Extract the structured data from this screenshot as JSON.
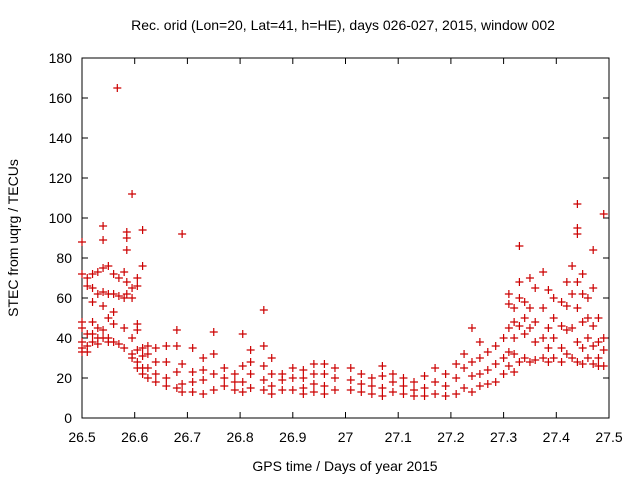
{
  "chart_data": {
    "type": "scatter",
    "title": "Rec. orid (Lon=20, Lat=41, h=HE), days 026-027, 2015, window 002",
    "xlabel": "GPS time / Days of year 2015",
    "ylabel": "STEC from uqrg / TECUs",
    "xlim": [
      26.5,
      27.5
    ],
    "ylim": [
      0,
      180
    ],
    "xticks": [
      "26.5",
      "26.6",
      "26.7",
      "26.8",
      "26.9",
      "27",
      "27.1",
      "27.2",
      "27.3",
      "27.4",
      "27.5"
    ],
    "yticks": [
      "0",
      "20",
      "40",
      "60",
      "80",
      "100",
      "120",
      "140",
      "160",
      "180"
    ],
    "grid": false,
    "marker": "+",
    "marker_color": "#cc0000",
    "points": [
      [
        26.5,
        88
      ],
      [
        26.5,
        72
      ],
      [
        26.5,
        48
      ],
      [
        26.5,
        45
      ],
      [
        26.5,
        38
      ],
      [
        26.5,
        35
      ],
      [
        26.5,
        33
      ],
      [
        26.51,
        70
      ],
      [
        26.51,
        66
      ],
      [
        26.51,
        42
      ],
      [
        26.51,
        36
      ],
      [
        26.51,
        33
      ],
      [
        26.52,
        72
      ],
      [
        26.52,
        65
      ],
      [
        26.52,
        58
      ],
      [
        26.52,
        48
      ],
      [
        26.52,
        42
      ],
      [
        26.52,
        38
      ],
      [
        26.53,
        73
      ],
      [
        26.53,
        62
      ],
      [
        26.53,
        45
      ],
      [
        26.53,
        40
      ],
      [
        26.53,
        37
      ],
      [
        26.54,
        96
      ],
      [
        26.54,
        89
      ],
      [
        26.54,
        75
      ],
      [
        26.54,
        63
      ],
      [
        26.54,
        56
      ],
      [
        26.54,
        44
      ],
      [
        26.54,
        40
      ],
      [
        26.55,
        76
      ],
      [
        26.55,
        62
      ],
      [
        26.55,
        50
      ],
      [
        26.55,
        40
      ],
      [
        26.55,
        38
      ],
      [
        26.56,
        72
      ],
      [
        26.56,
        62
      ],
      [
        26.56,
        53
      ],
      [
        26.56,
        47
      ],
      [
        26.56,
        38
      ],
      [
        26.567,
        165
      ],
      [
        26.57,
        70
      ],
      [
        26.57,
        61
      ],
      [
        26.57,
        37
      ],
      [
        26.58,
        73
      ],
      [
        26.58,
        60
      ],
      [
        26.58,
        45
      ],
      [
        26.58,
        35
      ],
      [
        26.585,
        93
      ],
      [
        26.585,
        90
      ],
      [
        26.585,
        84
      ],
      [
        26.585,
        68
      ],
      [
        26.585,
        62
      ],
      [
        26.595,
        112
      ],
      [
        26.595,
        65
      ],
      [
        26.595,
        60
      ],
      [
        26.595,
        40
      ],
      [
        26.595,
        32
      ],
      [
        26.595,
        30
      ],
      [
        26.605,
        70
      ],
      [
        26.605,
        66
      ],
      [
        26.605,
        47
      ],
      [
        26.605,
        44
      ],
      [
        26.605,
        34
      ],
      [
        26.605,
        28
      ],
      [
        26.605,
        25
      ],
      [
        26.615,
        94
      ],
      [
        26.615,
        76
      ],
      [
        26.615,
        35
      ],
      [
        26.615,
        31
      ],
      [
        26.615,
        25
      ],
      [
        26.615,
        22
      ],
      [
        26.625,
        36
      ],
      [
        26.625,
        32
      ],
      [
        26.625,
        25
      ],
      [
        26.625,
        20
      ],
      [
        26.64,
        35
      ],
      [
        26.64,
        28
      ],
      [
        26.64,
        22
      ],
      [
        26.64,
        18
      ],
      [
        26.66,
        36
      ],
      [
        26.66,
        28
      ],
      [
        26.66,
        20
      ],
      [
        26.66,
        16
      ],
      [
        26.68,
        44
      ],
      [
        26.68,
        36
      ],
      [
        26.68,
        23
      ],
      [
        26.68,
        15
      ],
      [
        26.69,
        92
      ],
      [
        26.69,
        27
      ],
      [
        26.69,
        17
      ],
      [
        26.69,
        13
      ],
      [
        26.71,
        35
      ],
      [
        26.71,
        23
      ],
      [
        26.71,
        18
      ],
      [
        26.71,
        13
      ],
      [
        26.73,
        30
      ],
      [
        26.73,
        24
      ],
      [
        26.73,
        19
      ],
      [
        26.73,
        12
      ],
      [
        26.75,
        43
      ],
      [
        26.75,
        32
      ],
      [
        26.75,
        22
      ],
      [
        26.75,
        14
      ],
      [
        26.77,
        25
      ],
      [
        26.77,
        20
      ],
      [
        26.77,
        16
      ],
      [
        26.79,
        22
      ],
      [
        26.79,
        18
      ],
      [
        26.79,
        14
      ],
      [
        26.805,
        42
      ],
      [
        26.805,
        26
      ],
      [
        26.805,
        18
      ],
      [
        26.805,
        13
      ],
      [
        26.82,
        34
      ],
      [
        26.82,
        28
      ],
      [
        26.82,
        22
      ],
      [
        26.82,
        15
      ],
      [
        26.845,
        54
      ],
      [
        26.845,
        36
      ],
      [
        26.845,
        26
      ],
      [
        26.845,
        19
      ],
      [
        26.845,
        14
      ],
      [
        26.86,
        30
      ],
      [
        26.86,
        22
      ],
      [
        26.86,
        16
      ],
      [
        26.86,
        12
      ],
      [
        26.88,
        22
      ],
      [
        26.88,
        19
      ],
      [
        26.88,
        14
      ],
      [
        26.9,
        25
      ],
      [
        26.9,
        20
      ],
      [
        26.9,
        14
      ],
      [
        26.92,
        24
      ],
      [
        26.92,
        20
      ],
      [
        26.92,
        15
      ],
      [
        26.92,
        12
      ],
      [
        26.94,
        27
      ],
      [
        26.94,
        22
      ],
      [
        26.94,
        17
      ],
      [
        26.94,
        13
      ],
      [
        26.96,
        27
      ],
      [
        26.96,
        22
      ],
      [
        26.96,
        16
      ],
      [
        26.96,
        12
      ],
      [
        26.98,
        25
      ],
      [
        26.98,
        20
      ],
      [
        26.98,
        14
      ],
      [
        27.01,
        25
      ],
      [
        27.01,
        19
      ],
      [
        27.01,
        14
      ],
      [
        27.03,
        22
      ],
      [
        27.03,
        17
      ],
      [
        27.03,
        13
      ],
      [
        27.05,
        20
      ],
      [
        27.05,
        16
      ],
      [
        27.05,
        12
      ],
      [
        27.07,
        26
      ],
      [
        27.07,
        21
      ],
      [
        27.07,
        15
      ],
      [
        27.07,
        11
      ],
      [
        27.09,
        22
      ],
      [
        27.09,
        18
      ],
      [
        27.09,
        13
      ],
      [
        27.11,
        20
      ],
      [
        27.11,
        16
      ],
      [
        27.11,
        12
      ],
      [
        27.13,
        18
      ],
      [
        27.13,
        14
      ],
      [
        27.13,
        11
      ],
      [
        27.15,
        21
      ],
      [
        27.15,
        15
      ],
      [
        27.15,
        11
      ],
      [
        27.17,
        25
      ],
      [
        27.17,
        18
      ],
      [
        27.17,
        12
      ],
      [
        27.19,
        22
      ],
      [
        27.19,
        16
      ],
      [
        27.19,
        11
      ],
      [
        27.21,
        27
      ],
      [
        27.21,
        20
      ],
      [
        27.21,
        12
      ],
      [
        27.225,
        32
      ],
      [
        27.225,
        25
      ],
      [
        27.225,
        15
      ],
      [
        27.24,
        45
      ],
      [
        27.24,
        28
      ],
      [
        27.24,
        21
      ],
      [
        27.24,
        13
      ],
      [
        27.255,
        38
      ],
      [
        27.255,
        30
      ],
      [
        27.255,
        22
      ],
      [
        27.255,
        16
      ],
      [
        27.27,
        33
      ],
      [
        27.27,
        24
      ],
      [
        27.27,
        17
      ],
      [
        27.285,
        36
      ],
      [
        27.285,
        27
      ],
      [
        27.285,
        18
      ],
      [
        27.3,
        40
      ],
      [
        27.3,
        30
      ],
      [
        27.3,
        22
      ],
      [
        27.31,
        62
      ],
      [
        27.31,
        57
      ],
      [
        27.31,
        45
      ],
      [
        27.31,
        33
      ],
      [
        27.31,
        26
      ],
      [
        27.32,
        55
      ],
      [
        27.32,
        48
      ],
      [
        27.32,
        40
      ],
      [
        27.32,
        32
      ],
      [
        27.32,
        23
      ],
      [
        27.33,
        86
      ],
      [
        27.33,
        68
      ],
      [
        27.33,
        60
      ],
      [
        27.33,
        46
      ],
      [
        27.33,
        28
      ],
      [
        27.34,
        58
      ],
      [
        27.34,
        50
      ],
      [
        27.34,
        42
      ],
      [
        27.34,
        30
      ],
      [
        27.35,
        70
      ],
      [
        27.35,
        55
      ],
      [
        27.35,
        45
      ],
      [
        27.35,
        28
      ],
      [
        27.36,
        65
      ],
      [
        27.36,
        48
      ],
      [
        27.36,
        38
      ],
      [
        27.36,
        29
      ],
      [
        27.375,
        73
      ],
      [
        27.375,
        55
      ],
      [
        27.375,
        40
      ],
      [
        27.375,
        30
      ],
      [
        27.385,
        64
      ],
      [
        27.385,
        45
      ],
      [
        27.385,
        35
      ],
      [
        27.385,
        28
      ],
      [
        27.395,
        60
      ],
      [
        27.395,
        50
      ],
      [
        27.395,
        40
      ],
      [
        27.395,
        30
      ],
      [
        27.41,
        58
      ],
      [
        27.41,
        46
      ],
      [
        27.41,
        35
      ],
      [
        27.41,
        28
      ],
      [
        27.42,
        68
      ],
      [
        27.42,
        56
      ],
      [
        27.42,
        44
      ],
      [
        27.42,
        32
      ],
      [
        27.43,
        76
      ],
      [
        27.43,
        62
      ],
      [
        27.43,
        45
      ],
      [
        27.43,
        30
      ],
      [
        27.44,
        107
      ],
      [
        27.44,
        95
      ],
      [
        27.44,
        92
      ],
      [
        27.44,
        68
      ],
      [
        27.44,
        55
      ],
      [
        27.44,
        38
      ],
      [
        27.44,
        28
      ],
      [
        27.45,
        72
      ],
      [
        27.45,
        62
      ],
      [
        27.45,
        48
      ],
      [
        27.45,
        35
      ],
      [
        27.45,
        27
      ],
      [
        27.46,
        60
      ],
      [
        27.46,
        50
      ],
      [
        27.46,
        40
      ],
      [
        27.46,
        30
      ],
      [
        27.47,
        84
      ],
      [
        27.47,
        65
      ],
      [
        27.47,
        46
      ],
      [
        27.47,
        36
      ],
      [
        27.47,
        27
      ],
      [
        27.48,
        50
      ],
      [
        27.48,
        38
      ],
      [
        27.48,
        30
      ],
      [
        27.48,
        26
      ],
      [
        27.49,
        102
      ],
      [
        27.49,
        40
      ],
      [
        27.49,
        34
      ],
      [
        27.49,
        26
      ]
    ]
  }
}
